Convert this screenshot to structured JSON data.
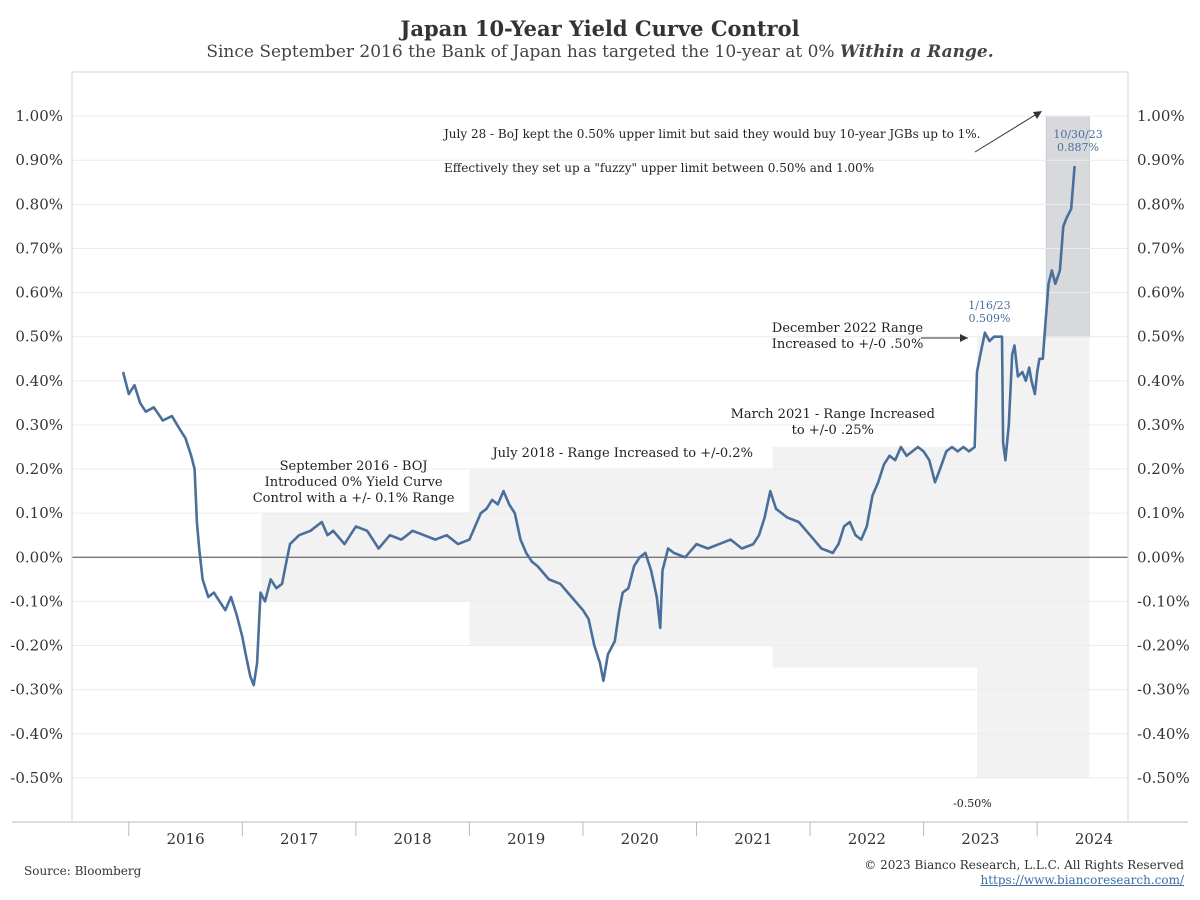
{
  "chart_data": {
    "type": "line",
    "title": "Japan 10-Year Yield Curve Control",
    "subtitle_prefix": "Since September 2016 the Bank of Japan has targeted the 10-year at 0% ",
    "subtitle_emphasis": "Within a Range.",
    "ylim": [
      -0.6,
      1.1
    ],
    "yticks": [
      "1.00%",
      "0.90%",
      "0.80%",
      "0.70%",
      "0.60%",
      "0.50%",
      "0.40%",
      "0.30%",
      "0.20%",
      "0.10%",
      "0.00%",
      "-0.10%",
      "-0.20%",
      "-0.30%",
      "-0.40%",
      "-0.50%"
    ],
    "ytick_values": [
      1.0,
      0.9,
      0.8,
      0.7,
      0.6,
      0.5,
      0.4,
      0.3,
      0.2,
      0.1,
      0.0,
      -0.1,
      -0.2,
      -0.3,
      -0.4,
      -0.5
    ],
    "xlim": [
      2015.0,
      2024.3
    ],
    "xticks": [
      "2016",
      "2017",
      "2018",
      "2019",
      "2020",
      "2021",
      "2022",
      "2023",
      "2024"
    ],
    "xtick_values": [
      2016,
      2017,
      2018,
      2019,
      2020,
      2021,
      2022,
      2023,
      2024
    ],
    "series": [
      {
        "color": "#4a6f9a",
        "points": [
          [
            2015.45,
            0.42
          ],
          [
            2015.5,
            0.37
          ],
          [
            2015.55,
            0.39
          ],
          [
            2015.6,
            0.35
          ],
          [
            2015.65,
            0.33
          ],
          [
            2015.72,
            0.34
          ],
          [
            2015.8,
            0.31
          ],
          [
            2015.88,
            0.32
          ],
          [
            2015.95,
            0.29
          ],
          [
            2016.0,
            0.27
          ],
          [
            2016.05,
            0.23
          ],
          [
            2016.08,
            0.2
          ],
          [
            2016.1,
            0.08
          ],
          [
            2016.12,
            0.02
          ],
          [
            2016.15,
            -0.05
          ],
          [
            2016.2,
            -0.09
          ],
          [
            2016.25,
            -0.08
          ],
          [
            2016.3,
            -0.1
          ],
          [
            2016.35,
            -0.12
          ],
          [
            2016.4,
            -0.09
          ],
          [
            2016.45,
            -0.13
          ],
          [
            2016.5,
            -0.18
          ],
          [
            2016.53,
            -0.22
          ],
          [
            2016.57,
            -0.27
          ],
          [
            2016.6,
            -0.29
          ],
          [
            2016.63,
            -0.24
          ],
          [
            2016.66,
            -0.08
          ],
          [
            2016.7,
            -0.1
          ],
          [
            2016.75,
            -0.05
          ],
          [
            2016.8,
            -0.07
          ],
          [
            2016.85,
            -0.06
          ],
          [
            2016.88,
            -0.02
          ],
          [
            2016.92,
            0.03
          ],
          [
            2017.0,
            0.05
          ],
          [
            2017.1,
            0.06
          ],
          [
            2017.2,
            0.08
          ],
          [
            2017.25,
            0.05
          ],
          [
            2017.3,
            0.06
          ],
          [
            2017.4,
            0.03
          ],
          [
            2017.5,
            0.07
          ],
          [
            2017.6,
            0.06
          ],
          [
            2017.7,
            0.02
          ],
          [
            2017.8,
            0.05
          ],
          [
            2017.9,
            0.04
          ],
          [
            2018.0,
            0.06
          ],
          [
            2018.1,
            0.05
          ],
          [
            2018.2,
            0.04
          ],
          [
            2018.3,
            0.05
          ],
          [
            2018.4,
            0.03
          ],
          [
            2018.5,
            0.04
          ],
          [
            2018.55,
            0.07
          ],
          [
            2018.6,
            0.1
          ],
          [
            2018.65,
            0.11
          ],
          [
            2018.7,
            0.13
          ],
          [
            2018.75,
            0.12
          ],
          [
            2018.8,
            0.15
          ],
          [
            2018.85,
            0.12
          ],
          [
            2018.9,
            0.1
          ],
          [
            2018.95,
            0.04
          ],
          [
            2019.0,
            0.01
          ],
          [
            2019.05,
            -0.01
          ],
          [
            2019.1,
            -0.02
          ],
          [
            2019.2,
            -0.05
          ],
          [
            2019.3,
            -0.06
          ],
          [
            2019.4,
            -0.09
          ],
          [
            2019.5,
            -0.12
          ],
          [
            2019.55,
            -0.14
          ],
          [
            2019.6,
            -0.2
          ],
          [
            2019.65,
            -0.24
          ],
          [
            2019.68,
            -0.28
          ],
          [
            2019.72,
            -0.22
          ],
          [
            2019.78,
            -0.19
          ],
          [
            2019.82,
            -0.12
          ],
          [
            2019.85,
            -0.08
          ],
          [
            2019.9,
            -0.07
          ],
          [
            2019.95,
            -0.02
          ],
          [
            2020.0,
            0.0
          ],
          [
            2020.05,
            0.01
          ],
          [
            2020.1,
            -0.03
          ],
          [
            2020.15,
            -0.09
          ],
          [
            2020.18,
            -0.16
          ],
          [
            2020.2,
            -0.03
          ],
          [
            2020.25,
            0.02
          ],
          [
            2020.3,
            0.01
          ],
          [
            2020.4,
            0.0
          ],
          [
            2020.5,
            0.03
          ],
          [
            2020.6,
            0.02
          ],
          [
            2020.7,
            0.03
          ],
          [
            2020.8,
            0.04
          ],
          [
            2020.9,
            0.02
          ],
          [
            2021.0,
            0.03
          ],
          [
            2021.05,
            0.05
          ],
          [
            2021.1,
            0.09
          ],
          [
            2021.15,
            0.15
          ],
          [
            2021.2,
            0.11
          ],
          [
            2021.3,
            0.09
          ],
          [
            2021.4,
            0.08
          ],
          [
            2021.5,
            0.05
          ],
          [
            2021.6,
            0.02
          ],
          [
            2021.7,
            0.01
          ],
          [
            2021.75,
            0.03
          ],
          [
            2021.8,
            0.07
          ],
          [
            2021.85,
            0.08
          ],
          [
            2021.9,
            0.05
          ],
          [
            2021.95,
            0.04
          ],
          [
            2022.0,
            0.07
          ],
          [
            2022.05,
            0.14
          ],
          [
            2022.1,
            0.17
          ],
          [
            2022.15,
            0.21
          ],
          [
            2022.2,
            0.23
          ],
          [
            2022.25,
            0.22
          ],
          [
            2022.3,
            0.25
          ],
          [
            2022.35,
            0.23
          ],
          [
            2022.4,
            0.24
          ],
          [
            2022.45,
            0.25
          ],
          [
            2022.5,
            0.24
          ],
          [
            2022.55,
            0.22
          ],
          [
            2022.6,
            0.17
          ],
          [
            2022.63,
            0.19
          ],
          [
            2022.7,
            0.24
          ],
          [
            2022.75,
            0.25
          ],
          [
            2022.8,
            0.24
          ],
          [
            2022.85,
            0.25
          ],
          [
            2022.9,
            0.24
          ],
          [
            2022.95,
            0.25
          ],
          [
            2022.97,
            0.42
          ],
          [
            2023.0,
            0.46
          ],
          [
            2023.04,
            0.509
          ],
          [
            2023.08,
            0.49
          ],
          [
            2023.12,
            0.5
          ],
          [
            2023.16,
            0.5
          ],
          [
            2023.19,
            0.5
          ],
          [
            2023.2,
            0.26
          ],
          [
            2023.22,
            0.22
          ],
          [
            2023.25,
            0.3
          ],
          [
            2023.28,
            0.46
          ],
          [
            2023.3,
            0.48
          ],
          [
            2023.33,
            0.41
          ],
          [
            2023.37,
            0.42
          ],
          [
            2023.4,
            0.4
          ],
          [
            2023.43,
            0.43
          ],
          [
            2023.45,
            0.4
          ],
          [
            2023.48,
            0.37
          ],
          [
            2023.5,
            0.42
          ],
          [
            2023.52,
            0.45
          ],
          [
            2023.55,
            0.45
          ],
          [
            2023.57,
            0.52
          ],
          [
            2023.6,
            0.62
          ],
          [
            2023.63,
            0.65
          ],
          [
            2023.66,
            0.62
          ],
          [
            2023.7,
            0.65
          ],
          [
            2023.73,
            0.75
          ],
          [
            2023.76,
            0.77
          ],
          [
            2023.8,
            0.79
          ],
          [
            2023.83,
            0.887
          ]
        ]
      }
    ],
    "annotations": {
      "sep2016_l1": "September 2016 - BOJ",
      "sep2016_l2": "Introduced 0% Yield Curve",
      "sep2016_l3": "Control with a +/- 0.1% Range",
      "jul2018": "July 2018 - Range Increased to +/-0.2%",
      "mar2021_l1": "March 2021 - Range Increased",
      "mar2021_l2": "to +/-0 .25%",
      "dec2022_l1": "December 2022 Range",
      "dec2022_l2": "Increased to +/-0 .50%",
      "jul28_l1": "July 28 - BoJ kept the 0.50% upper limit but said they would buy 10-year JGBs up to 1%.",
      "jul28_l2": "Effectively they set up a \"fuzzy\" upper limit between 0.50% and 1.00%",
      "jan16_date": "1/16/23",
      "jan16_value": "0.509%",
      "oct30_date": "10/30/23",
      "oct30_value": "0.887%",
      "neg050": "-0.50%"
    },
    "grid": true,
    "legend": "none"
  },
  "source": "Source: Bloomberg",
  "copyright": "© 2023 Bianco Research, L.L.C. All Rights Reserved",
  "url": "https://www.biancoresearch.com/",
  "colors": {
    "line": "#4a6f9a",
    "band": "#f2f2f2",
    "band_fuzzy": "#d7d9dd",
    "value_label": "#4a6f9a"
  }
}
